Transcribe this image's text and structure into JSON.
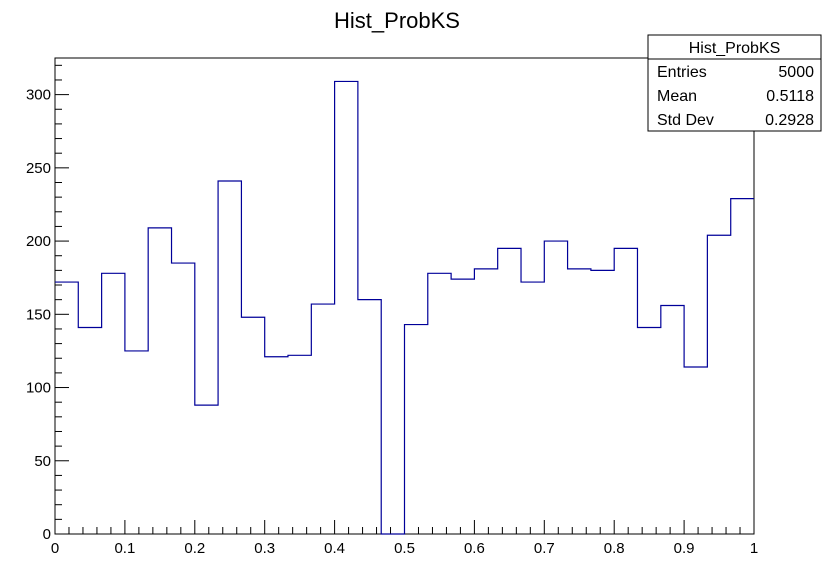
{
  "chart_data": {
    "type": "bar",
    "title": "Hist_ProbKS",
    "xlabel": "",
    "ylabel": "",
    "xlim": [
      0,
      1
    ],
    "ylim": [
      0,
      325
    ],
    "x_ticks": [
      0,
      0.1,
      0.2,
      0.3,
      0.4,
      0.5,
      0.6,
      0.7,
      0.8,
      0.9,
      1
    ],
    "x_tick_labels": [
      "0",
      "0.1",
      "0.2",
      "0.3",
      "0.4",
      "0.5",
      "0.6",
      "0.7",
      "0.8",
      "0.9",
      "1"
    ],
    "y_ticks": [
      0,
      50,
      100,
      150,
      200,
      250,
      300
    ],
    "y_tick_labels": [
      "0",
      "50",
      "100",
      "150",
      "200",
      "250",
      "300"
    ],
    "bin_edges": [
      0,
      0.0333,
      0.0667,
      0.1,
      0.1333,
      0.1667,
      0.2,
      0.2333,
      0.2667,
      0.3,
      0.3333,
      0.3667,
      0.4,
      0.4333,
      0.4667,
      0.5,
      0.5333,
      0.5667,
      0.6,
      0.6333,
      0.6667,
      0.7,
      0.7333,
      0.7667,
      0.8,
      0.8333,
      0.8667,
      0.9,
      0.9333,
      0.9667,
      1.0
    ],
    "values": [
      172,
      141,
      178,
      125,
      209,
      185,
      88,
      241,
      148,
      121,
      122,
      157,
      309,
      160,
      0,
      143,
      178,
      174,
      181,
      195,
      172,
      200,
      181,
      180,
      195,
      141,
      156,
      114,
      204,
      229
    ],
    "line_color": "#000099",
    "grid": false,
    "stats_box": {
      "title": "Hist_ProbKS",
      "rows": [
        {
          "label": "Entries",
          "value": "5000"
        },
        {
          "label": "Mean",
          "value": "0.5118"
        },
        {
          "label": "Std Dev",
          "value": "0.2928"
        }
      ]
    }
  }
}
